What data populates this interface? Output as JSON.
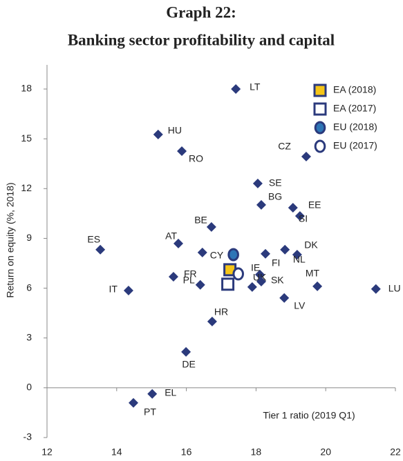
{
  "chart_data": {
    "type": "scatter",
    "title": "Graph 22:",
    "subtitle": "Banking sector profitability and capital",
    "xlabel": "Tier 1 ratio (2019 Q1)",
    "ylabel": "Return on equity (%, 2018)",
    "xlim": [
      12,
      22
    ],
    "xticks": [
      12,
      14,
      16,
      18,
      20,
      22
    ],
    "ylim": [
      -3,
      18
    ],
    "yticks": [
      -3,
      0,
      3,
      6,
      9,
      12,
      15,
      18
    ],
    "grid": false,
    "legend": "upper right",
    "series": [
      {
        "marker": "diamond",
        "color": "#2b3a7c",
        "labels": [
          "LT",
          "HU",
          "RO",
          "CZ",
          "SE",
          "BG",
          "EE",
          "SI",
          "BE",
          "ES",
          "AT",
          "CY",
          "FI",
          "DK",
          "NL",
          "FR",
          "PL",
          "IE",
          "UK",
          "SK",
          "IT",
          "MT",
          "LU",
          "LV",
          "HR",
          "DE",
          "EL",
          "PT"
        ],
        "x": [
          17.42,
          15.19,
          15.87,
          19.44,
          18.05,
          18.15,
          19.06,
          19.26,
          16.72,
          13.53,
          15.77,
          16.46,
          18.27,
          18.83,
          19.18,
          15.63,
          16.4,
          18.11,
          17.89,
          18.15,
          14.34,
          19.76,
          21.44,
          18.81,
          16.74,
          15.99,
          15.02,
          14.48
        ],
        "y": [
          18.0,
          15.26,
          14.26,
          13.93,
          12.31,
          11.02,
          10.85,
          10.35,
          9.69,
          8.32,
          8.69,
          8.15,
          8.07,
          8.32,
          8.02,
          6.69,
          6.2,
          6.82,
          6.07,
          6.4,
          5.86,
          6.11,
          5.95,
          5.41,
          3.99,
          2.16,
          -0.37,
          -0.91
        ]
      },
      {
        "name": "EA (2018)",
        "marker": "square",
        "color": "#f5c518",
        "edge": "#2b3a7c",
        "x": [
          17.25
        ],
        "y": [
          7.11
        ]
      },
      {
        "name": "EA (2017)",
        "marker": "square",
        "color": "#ffffff",
        "edge": "#2b3a7c",
        "x": [
          17.19
        ],
        "y": [
          6.24
        ]
      },
      {
        "name": "EU (2018)",
        "marker": "circle",
        "color": "#2e75b6",
        "edge": "#2b3a7c",
        "x": [
          17.35
        ],
        "y": [
          8.02
        ]
      },
      {
        "name": "EU (2017)",
        "marker": "circle",
        "color": "#ffffff",
        "edge": "#2b3a7c",
        "x": [
          17.49
        ],
        "y": [
          6.86
        ]
      }
    ]
  }
}
